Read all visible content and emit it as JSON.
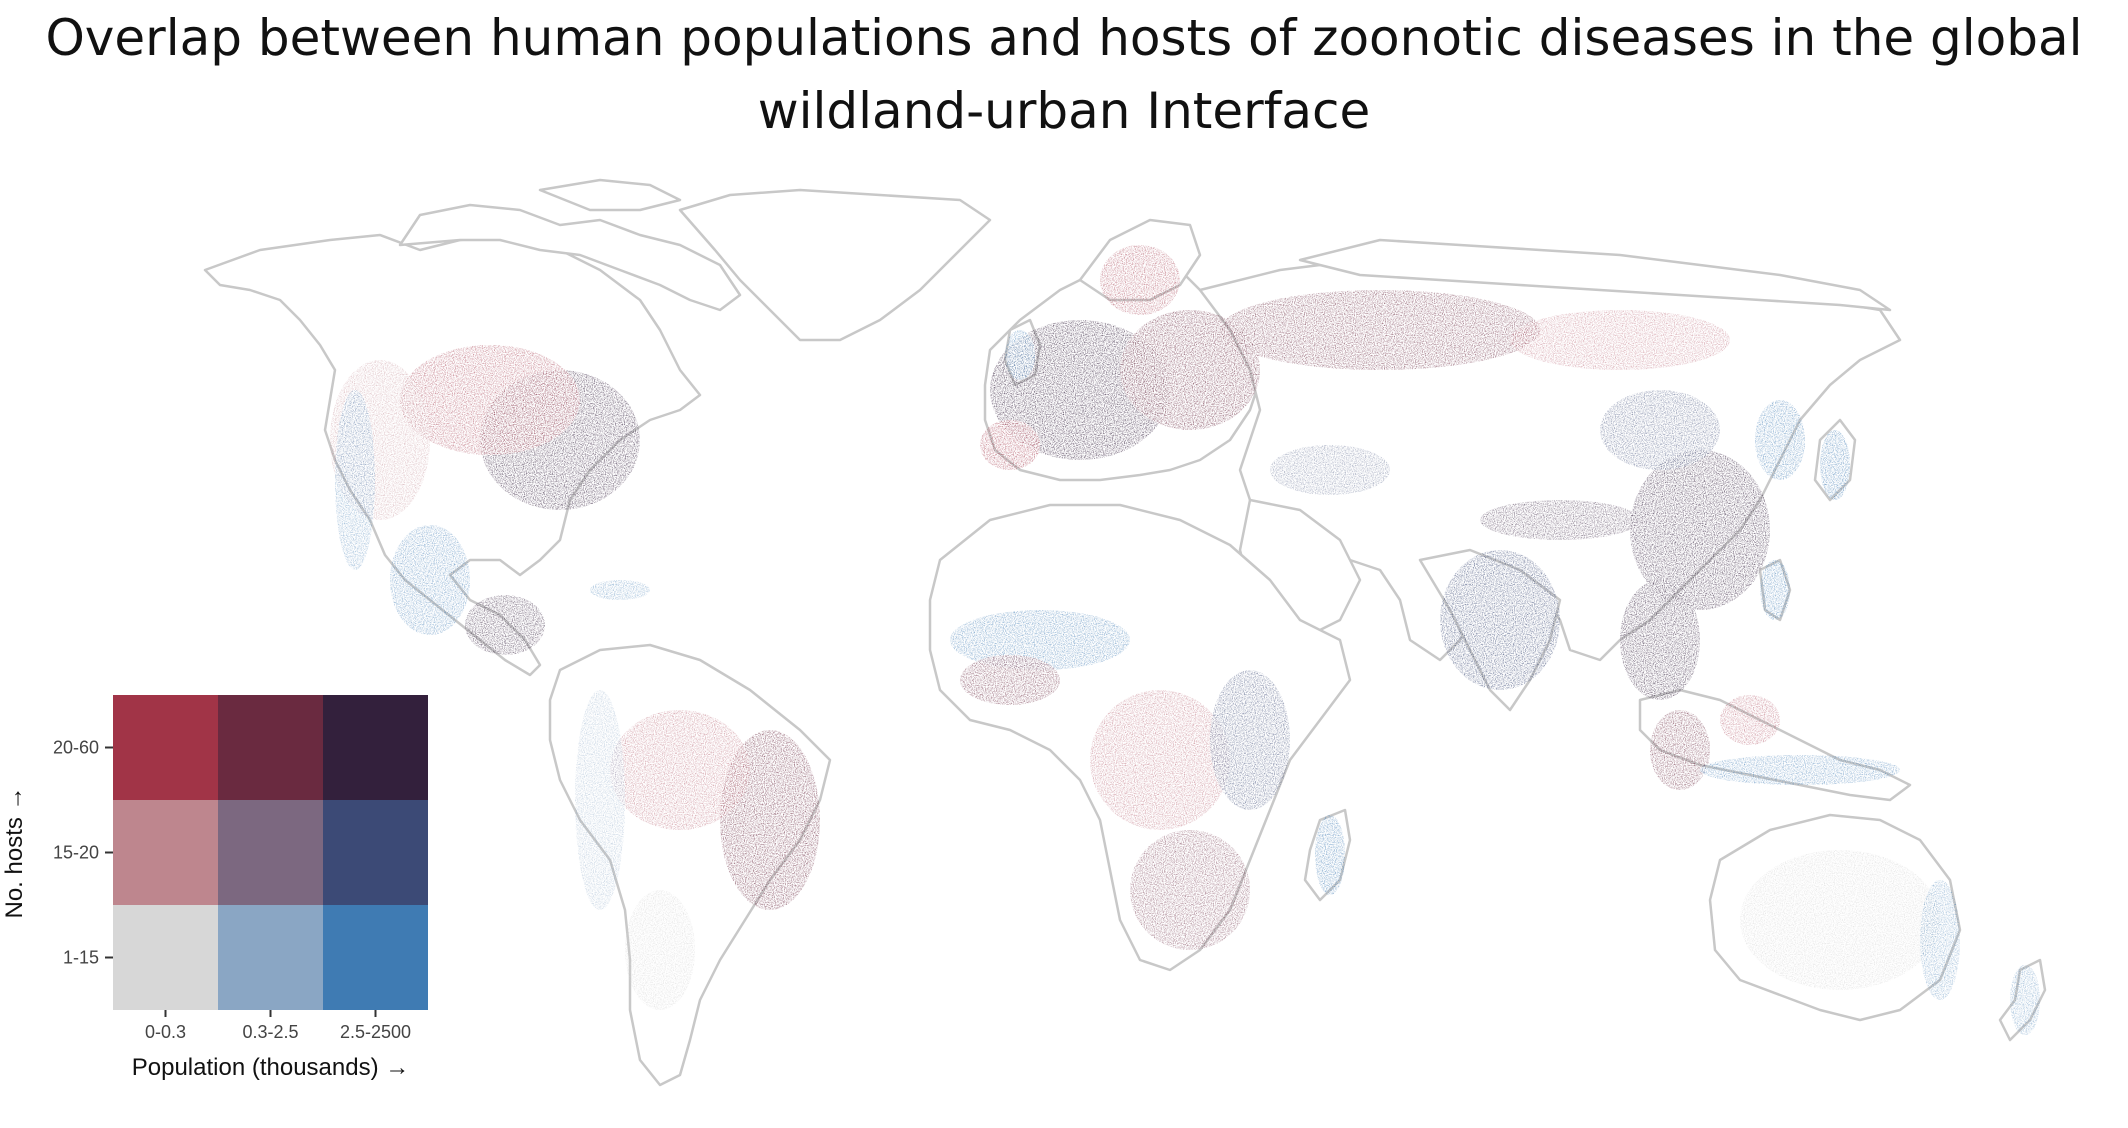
{
  "title": {
    "line1": "Overlap between human populations and hosts of zoonotic diseases in the global",
    "line2": "wildland-urban Interface"
  },
  "legend": {
    "x_axis_title": "Population (thousands) →",
    "y_axis_title": "No. hosts →",
    "x_categories": [
      "0-0.3",
      "0.3-2.5",
      "2.5-2500"
    ],
    "y_categories": [
      "1-15",
      "15-20",
      "20-60"
    ],
    "cells": [
      {
        "pop": "0-0.3",
        "hosts": "20-60",
        "color": "#a13447"
      },
      {
        "pop": "0.3-2.5",
        "hosts": "20-60",
        "color": "#6a2a40"
      },
      {
        "pop": "2.5-2500",
        "hosts": "20-60",
        "color": "#33203c"
      },
      {
        "pop": "0-0.3",
        "hosts": "15-20",
        "color": "#be868e"
      },
      {
        "pop": "0.3-2.5",
        "hosts": "15-20",
        "color": "#7c6880"
      },
      {
        "pop": "2.5-2500",
        "hosts": "15-20",
        "color": "#3c4a76"
      },
      {
        "pop": "0-0.3",
        "hosts": "1-15",
        "color": "#d7d7d7"
      },
      {
        "pop": "0.3-2.5",
        "hosts": "1-15",
        "color": "#8aa6c4"
      },
      {
        "pop": "2.5-2500",
        "hosts": "1-15",
        "color": "#3f7bb3"
      }
    ]
  },
  "map": {
    "background_land": "#ffffff",
    "border_color": "#c8c8c8"
  }
}
